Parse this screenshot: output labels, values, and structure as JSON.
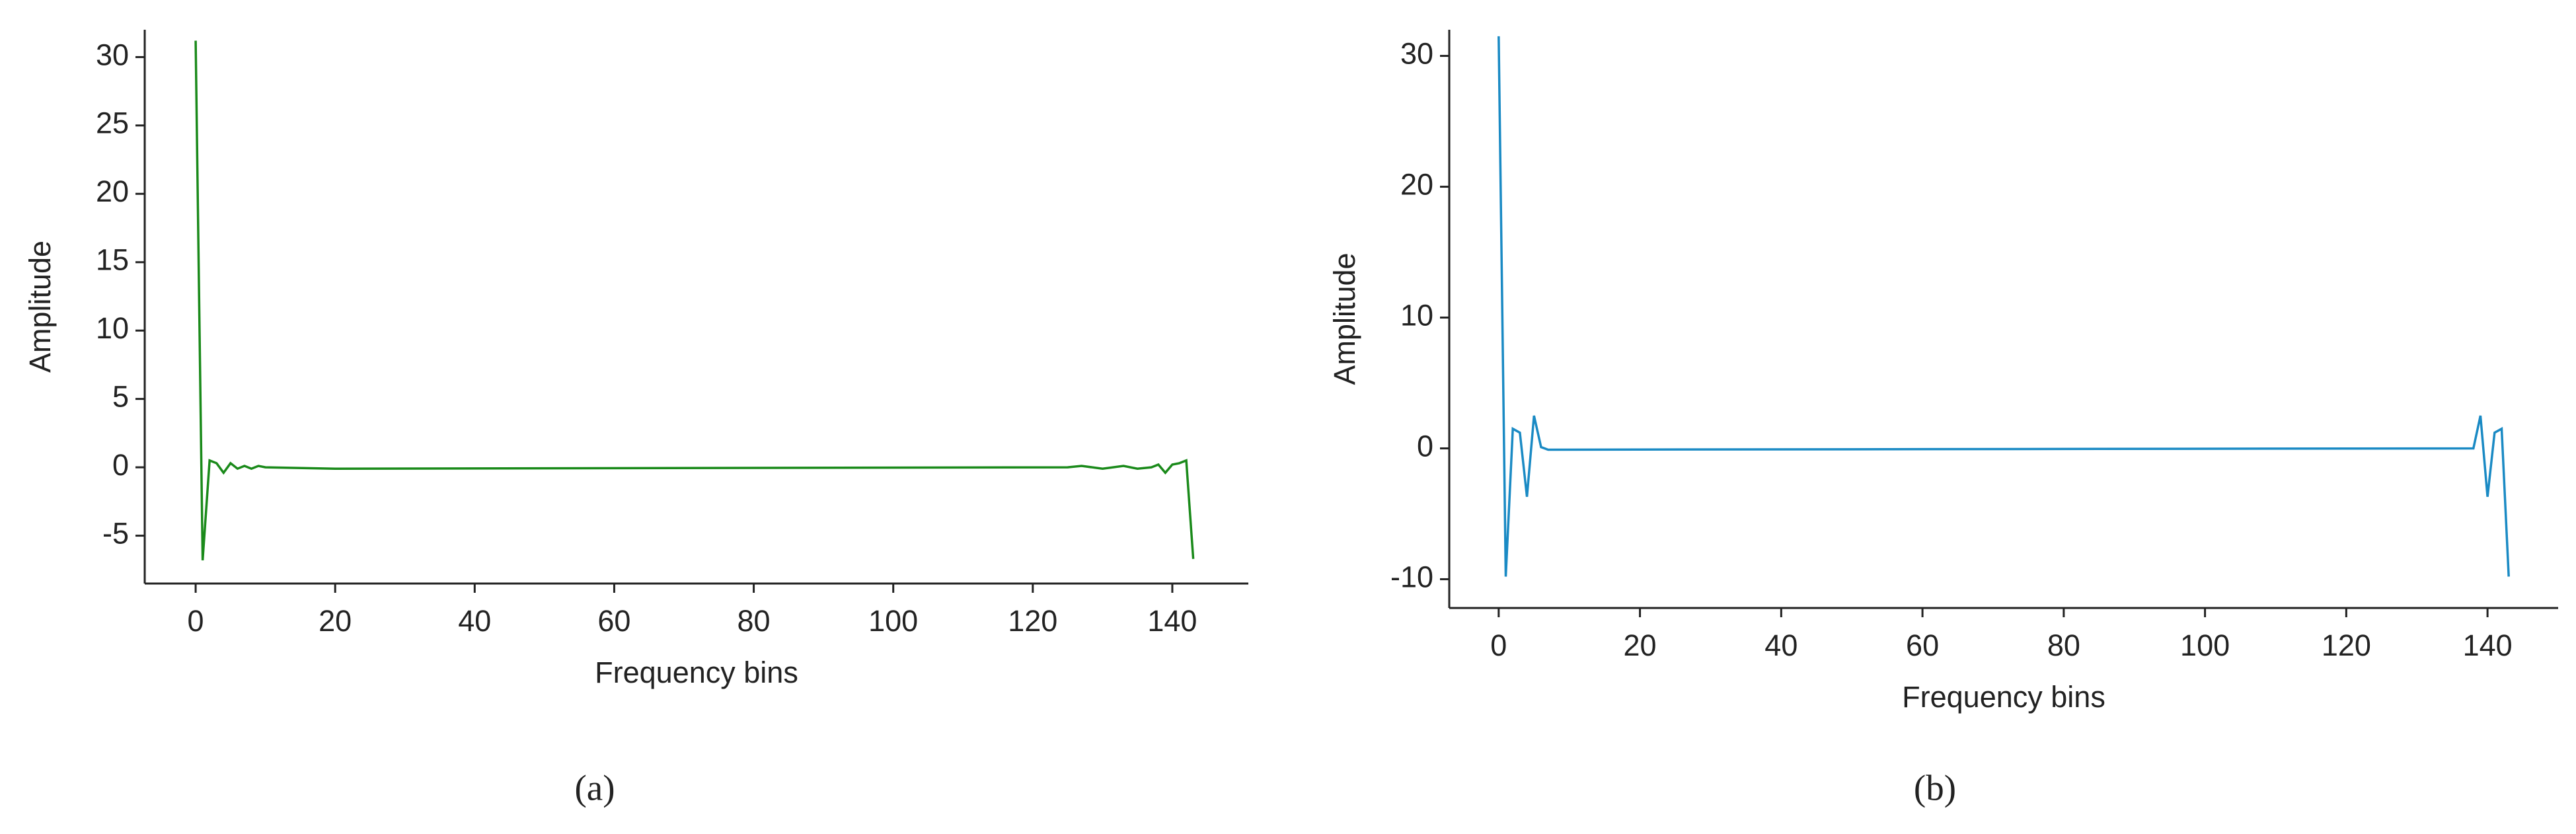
{
  "chart_data": [
    {
      "type": "line",
      "caption": "(a)",
      "x_label": "Frequency bins",
      "y_label": "Amplitude",
      "xlim": [
        -7.3,
        150.9
      ],
      "ylim": [
        -8.5,
        32
      ],
      "xticks": [
        0,
        20,
        40,
        60,
        80,
        100,
        120,
        140
      ],
      "yticks": [
        -5,
        0,
        5,
        10,
        15,
        20,
        25,
        30
      ],
      "series": [
        {
          "color": "#1a8a1a",
          "x": [
            0,
            1,
            2,
            3,
            4,
            5,
            6,
            7,
            8,
            9,
            10,
            20,
            125,
            127,
            130,
            133,
            135,
            137,
            138,
            139,
            140,
            141,
            142,
            143
          ],
          "values": [
            31.2,
            -6.8,
            0.5,
            0.3,
            -0.4,
            0.3,
            -0.1,
            0.1,
            -0.1,
            0.1,
            0,
            -0.1,
            0,
            0.1,
            -0.1,
            0.1,
            -0.1,
            0,
            0.2,
            -0.4,
            0.2,
            0.3,
            0.5,
            -6.7
          ]
        }
      ]
    },
    {
      "type": "line",
      "caption": "(b)",
      "x_label": "Frequency bins",
      "y_label": "Amplitude",
      "xlim": [
        -7,
        150
      ],
      "ylim": [
        -12.2,
        32
      ],
      "xticks": [
        0,
        20,
        40,
        60,
        80,
        100,
        120,
        140
      ],
      "yticks": [
        -10,
        0,
        10,
        20,
        30
      ],
      "series": [
        {
          "color": "#1a8ac4",
          "x": [
            0,
            1,
            2,
            3,
            4,
            5,
            6,
            7,
            138,
            139,
            140,
            141,
            142,
            143
          ],
          "values": [
            31.5,
            -9.8,
            1.5,
            1.2,
            -3.7,
            2.5,
            0.1,
            -0.1,
            0,
            2.5,
            -3.7,
            1.2,
            1.5,
            -9.8
          ]
        }
      ]
    }
  ]
}
